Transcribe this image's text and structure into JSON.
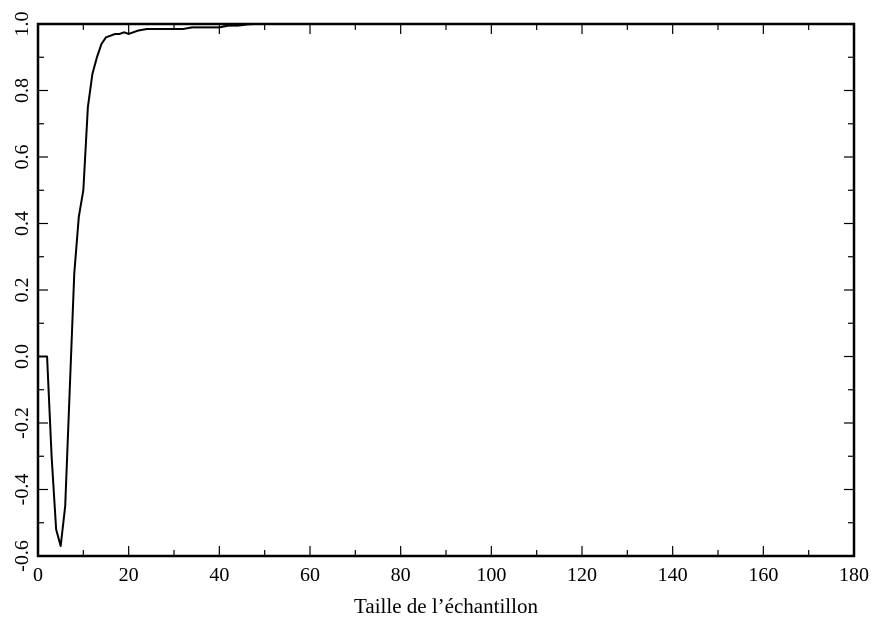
{
  "chart_data": {
    "type": "line",
    "title": "",
    "xlabel": "Taille de l’échantillon",
    "ylabel": "",
    "xlim": [
      0,
      180
    ],
    "ylim": [
      -0.6,
      1.0
    ],
    "grid": false,
    "x_ticks": [
      0,
      20,
      40,
      60,
      80,
      100,
      120,
      140,
      160,
      180
    ],
    "x_tick_labels": [
      "0",
      "20",
      "40",
      "60",
      "80",
      "100",
      "120",
      "140",
      "160",
      "180"
    ],
    "y_ticks": [
      -0.6,
      -0.4,
      -0.2,
      0.0,
      0.2,
      0.4,
      0.6,
      0.8,
      1.0
    ],
    "y_tick_labels": [
      "-0.6",
      "-0.4",
      "-0.2",
      "0.0",
      "0.2",
      "0.4",
      "0.6",
      "0.8",
      "1.0"
    ],
    "series": [
      {
        "color": "#000000",
        "x": [
          0,
          1,
          2,
          3,
          4,
          5,
          6,
          7,
          8,
          9,
          10,
          11,
          12,
          13,
          14,
          15,
          16,
          17,
          18,
          19,
          20,
          22,
          24,
          26,
          28,
          30,
          32,
          34,
          36,
          38,
          40,
          42,
          44,
          46,
          48,
          50,
          55,
          60,
          70,
          80,
          90,
          100,
          120,
          140,
          160,
          180
        ],
        "y": [
          0.0,
          0.0,
          0.0,
          -0.3,
          -0.52,
          -0.57,
          -0.45,
          -0.1,
          0.25,
          0.42,
          0.5,
          0.75,
          0.85,
          0.9,
          0.94,
          0.96,
          0.965,
          0.97,
          0.97,
          0.975,
          0.97,
          0.98,
          0.985,
          0.985,
          0.985,
          0.985,
          0.985,
          0.99,
          0.99,
          0.99,
          0.99,
          0.995,
          0.995,
          0.998,
          1.0,
          1.0,
          1.0,
          1.0,
          1.0,
          1.0,
          1.0,
          1.0,
          1.0,
          1.0,
          1.0,
          1.0
        ]
      }
    ]
  }
}
